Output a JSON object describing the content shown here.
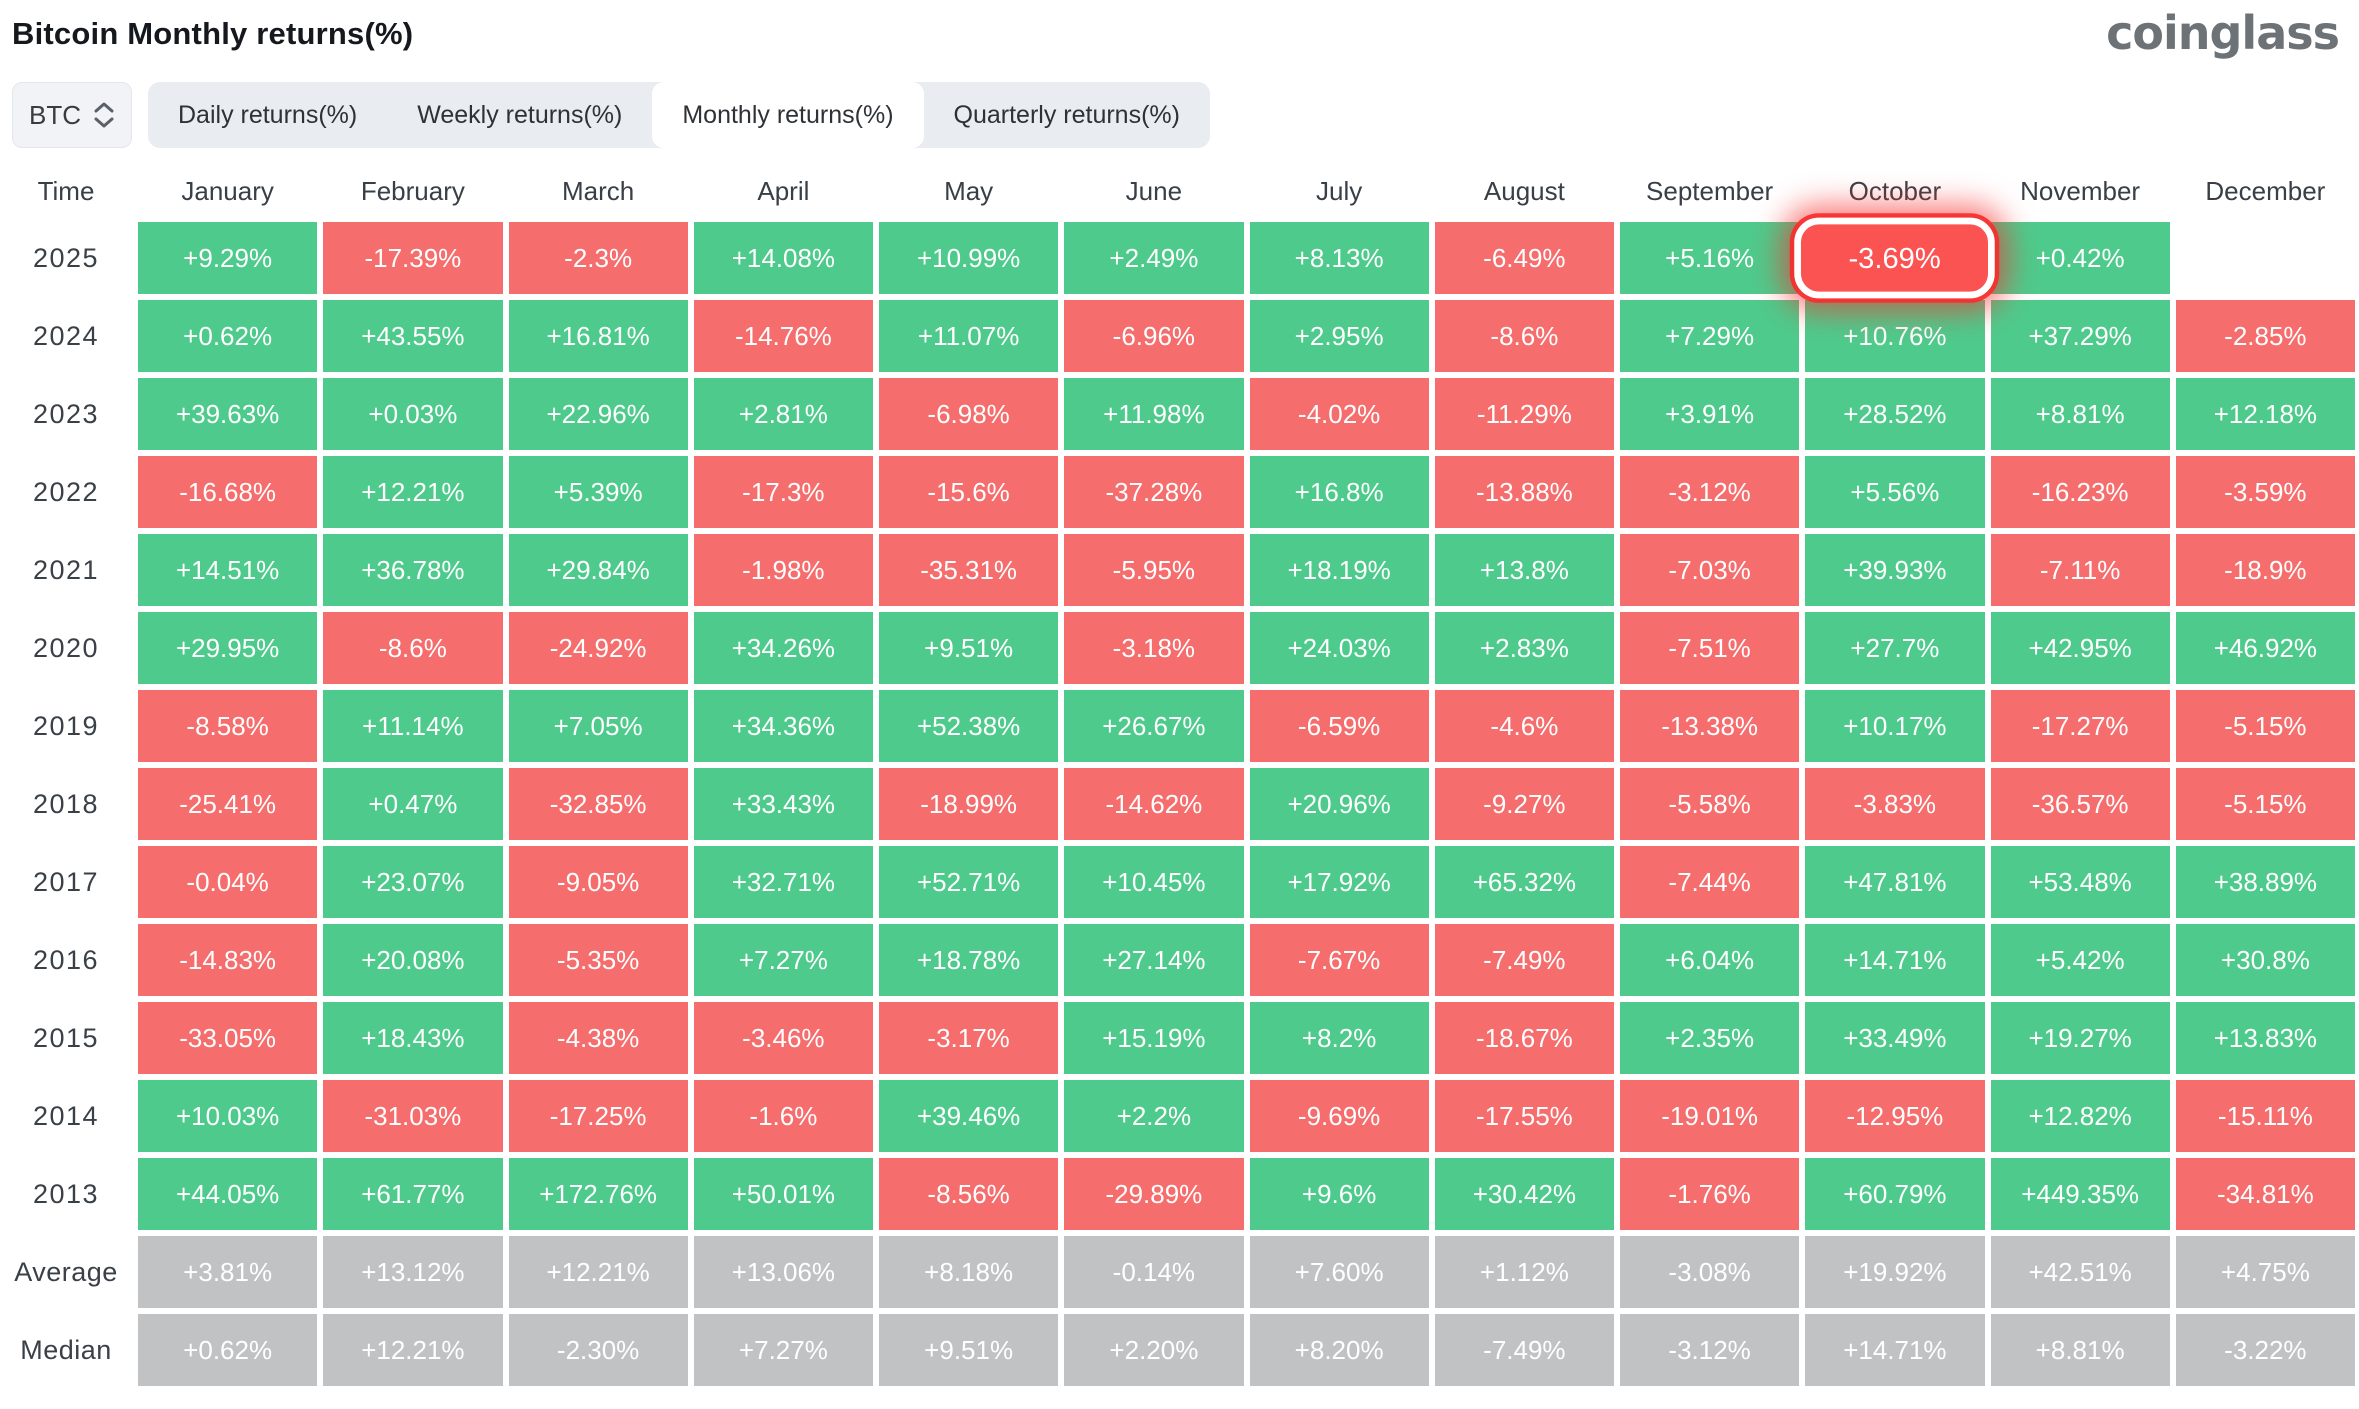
{
  "page": {
    "title": "Bitcoin Monthly returns(%)",
    "logo": "coinglass"
  },
  "controls": {
    "symbol_selector": {
      "value": "BTC"
    },
    "tabs": [
      {
        "label": "Daily returns(%)",
        "active": false
      },
      {
        "label": "Weekly returns(%)",
        "active": false
      },
      {
        "label": "Monthly returns(%)",
        "active": true
      },
      {
        "label": "Quarterly returns(%)",
        "active": false
      }
    ]
  },
  "colors": {
    "positive": "#4ecb8c",
    "negative": "#f56d6d",
    "summary": "#c1c2c4",
    "highlight": "#fb5252"
  },
  "chart_data": {
    "type": "heatmap",
    "title": "Bitcoin Monthly returns(%)",
    "time_header": "Time",
    "months": [
      "January",
      "February",
      "March",
      "April",
      "May",
      "June",
      "July",
      "August",
      "September",
      "October",
      "November",
      "December"
    ],
    "rows": [
      {
        "time": "2025",
        "kind": "year",
        "highlight_month": "October",
        "values": [
          "+9.29%",
          "-17.39%",
          "-2.3%",
          "+14.08%",
          "+10.99%",
          "+2.49%",
          "+8.13%",
          "-6.49%",
          "+5.16%",
          "-3.69%",
          "+0.42%",
          null
        ]
      },
      {
        "time": "2024",
        "kind": "year",
        "values": [
          "+0.62%",
          "+43.55%",
          "+16.81%",
          "-14.76%",
          "+11.07%",
          "-6.96%",
          "+2.95%",
          "-8.6%",
          "+7.29%",
          "+10.76%",
          "+37.29%",
          "-2.85%"
        ]
      },
      {
        "time": "2023",
        "kind": "year",
        "values": [
          "+39.63%",
          "+0.03%",
          "+22.96%",
          "+2.81%",
          "-6.98%",
          "+11.98%",
          "-4.02%",
          "-11.29%",
          "+3.91%",
          "+28.52%",
          "+8.81%",
          "+12.18%"
        ]
      },
      {
        "time": "2022",
        "kind": "year",
        "values": [
          "-16.68%",
          "+12.21%",
          "+5.39%",
          "-17.3%",
          "-15.6%",
          "-37.28%",
          "+16.8%",
          "-13.88%",
          "-3.12%",
          "+5.56%",
          "-16.23%",
          "-3.59%"
        ]
      },
      {
        "time": "2021",
        "kind": "year",
        "values": [
          "+14.51%",
          "+36.78%",
          "+29.84%",
          "-1.98%",
          "-35.31%",
          "-5.95%",
          "+18.19%",
          "+13.8%",
          "-7.03%",
          "+39.93%",
          "-7.11%",
          "-18.9%"
        ]
      },
      {
        "time": "2020",
        "kind": "year",
        "values": [
          "+29.95%",
          "-8.6%",
          "-24.92%",
          "+34.26%",
          "+9.51%",
          "-3.18%",
          "+24.03%",
          "+2.83%",
          "-7.51%",
          "+27.7%",
          "+42.95%",
          "+46.92%"
        ]
      },
      {
        "time": "2019",
        "kind": "year",
        "values": [
          "-8.58%",
          "+11.14%",
          "+7.05%",
          "+34.36%",
          "+52.38%",
          "+26.67%",
          "-6.59%",
          "-4.6%",
          "-13.38%",
          "+10.17%",
          "-17.27%",
          "-5.15%"
        ]
      },
      {
        "time": "2018",
        "kind": "year",
        "values": [
          "-25.41%",
          "+0.47%",
          "-32.85%",
          "+33.43%",
          "-18.99%",
          "-14.62%",
          "+20.96%",
          "-9.27%",
          "-5.58%",
          "-3.83%",
          "-36.57%",
          "-5.15%"
        ]
      },
      {
        "time": "2017",
        "kind": "year",
        "values": [
          "-0.04%",
          "+23.07%",
          "-9.05%",
          "+32.71%",
          "+52.71%",
          "+10.45%",
          "+17.92%",
          "+65.32%",
          "-7.44%",
          "+47.81%",
          "+53.48%",
          "+38.89%"
        ]
      },
      {
        "time": "2016",
        "kind": "year",
        "values": [
          "-14.83%",
          "+20.08%",
          "-5.35%",
          "+7.27%",
          "+18.78%",
          "+27.14%",
          "-7.67%",
          "-7.49%",
          "+6.04%",
          "+14.71%",
          "+5.42%",
          "+30.8%"
        ]
      },
      {
        "time": "2015",
        "kind": "year",
        "values": [
          "-33.05%",
          "+18.43%",
          "-4.38%",
          "-3.46%",
          "-3.17%",
          "+15.19%",
          "+8.2%",
          "-18.67%",
          "+2.35%",
          "+33.49%",
          "+19.27%",
          "+13.83%"
        ]
      },
      {
        "time": "2014",
        "kind": "year",
        "values": [
          "+10.03%",
          "-31.03%",
          "-17.25%",
          "-1.6%",
          "+39.46%",
          "+2.2%",
          "-9.69%",
          "-17.55%",
          "-19.01%",
          "-12.95%",
          "+12.82%",
          "-15.11%"
        ]
      },
      {
        "time": "2013",
        "kind": "year",
        "values": [
          "+44.05%",
          "+61.77%",
          "+172.76%",
          "+50.01%",
          "-8.56%",
          "-29.89%",
          "+9.6%",
          "+30.42%",
          "-1.76%",
          "+60.79%",
          "+449.35%",
          "-34.81%"
        ]
      },
      {
        "time": "Average",
        "kind": "summary",
        "values": [
          "+3.81%",
          "+13.12%",
          "+12.21%",
          "+13.06%",
          "+8.18%",
          "-0.14%",
          "+7.60%",
          "+1.12%",
          "-3.08%",
          "+19.92%",
          "+42.51%",
          "+4.75%"
        ]
      },
      {
        "time": "Median",
        "kind": "summary",
        "values": [
          "+0.62%",
          "+12.21%",
          "-2.30%",
          "+7.27%",
          "+9.51%",
          "+2.20%",
          "+8.20%",
          "-7.49%",
          "-3.12%",
          "+14.71%",
          "+8.81%",
          "-3.22%"
        ]
      }
    ]
  }
}
